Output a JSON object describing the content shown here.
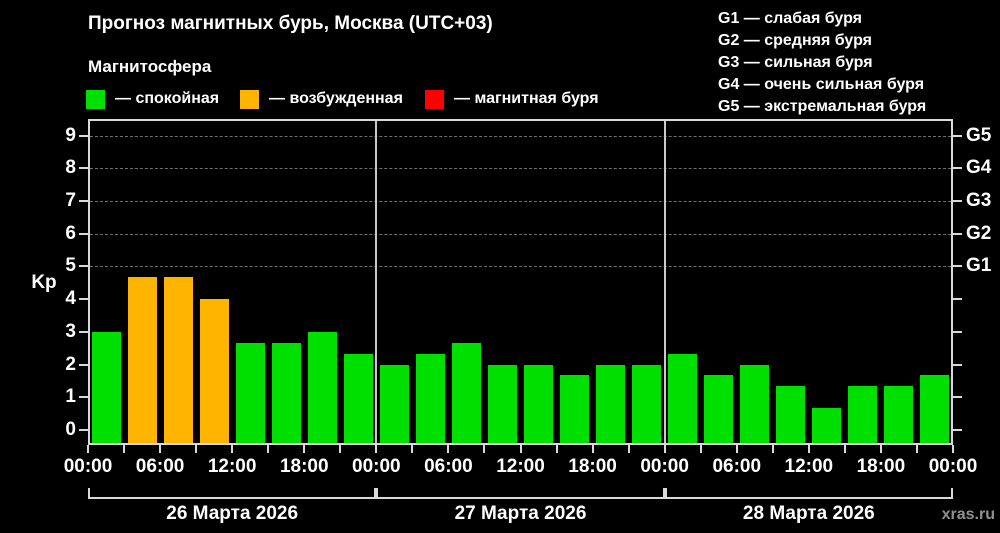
{
  "header": {
    "title": "Прогноз магнитных бурь, Москва (UTC+03)",
    "subtitle": "Магнитосфера",
    "legend": [
      {
        "level": "quiet",
        "label": "— спокойная"
      },
      {
        "level": "excited",
        "label": "— возбужденная"
      },
      {
        "level": "storm",
        "label": "— магнитная буря"
      }
    ],
    "g_scale": [
      "G1 — слабая буря",
      "G2 — средняя буря",
      "G3 — сильная буря",
      "G4 — очень сильная буря",
      "G5 — экстремальная буря"
    ]
  },
  "watermark": "xras.ru",
  "chart_data": {
    "type": "bar",
    "title": "Прогноз магнитных бурь, Москва (UTC+03)",
    "ylabel": "Kp",
    "xlabel": "",
    "ylim": [
      0,
      9
    ],
    "y_ticks": [
      0,
      1,
      2,
      3,
      4,
      5,
      6,
      7,
      8,
      9
    ],
    "dashed_gridlines_at": [
      5,
      6,
      7,
      8,
      9
    ],
    "right_axis": [
      {
        "kp": 5,
        "label": "G1"
      },
      {
        "kp": 6,
        "label": "G2"
      },
      {
        "kp": 7,
        "label": "G3"
      },
      {
        "kp": 8,
        "label": "G4"
      },
      {
        "kp": 9,
        "label": "G5"
      }
    ],
    "bar_interval_hours": 3,
    "x_tick_step_hours": 3,
    "x_label_times": [
      "00:00",
      "06:00",
      "12:00",
      "18:00"
    ],
    "legend_position": "top-left",
    "grid": "dashed horizontal lines at Kp 5-9 only",
    "colors": {
      "quiet": "#00e000",
      "excited": "#ffb400",
      "storm": "#ff0000"
    },
    "days": [
      {
        "date": "26 Марта 2026",
        "values": [
          3.0,
          4.67,
          4.67,
          4.0,
          2.67,
          2.67,
          3.0,
          2.33
        ],
        "levels": [
          "quiet",
          "excited",
          "excited",
          "excited",
          "quiet",
          "quiet",
          "quiet",
          "quiet"
        ]
      },
      {
        "date": "27 Марта 2026",
        "values": [
          2.0,
          2.33,
          2.67,
          2.0,
          2.0,
          1.67,
          2.0,
          2.0
        ],
        "levels": [
          "quiet",
          "quiet",
          "quiet",
          "quiet",
          "quiet",
          "quiet",
          "quiet",
          "quiet"
        ]
      },
      {
        "date": "28 Марта 2026",
        "values": [
          2.33,
          1.67,
          2.0,
          1.33,
          0.67,
          1.33,
          1.33,
          1.67
        ],
        "levels": [
          "quiet",
          "quiet",
          "quiet",
          "quiet",
          "quiet",
          "quiet",
          "quiet",
          "quiet"
        ]
      }
    ]
  }
}
